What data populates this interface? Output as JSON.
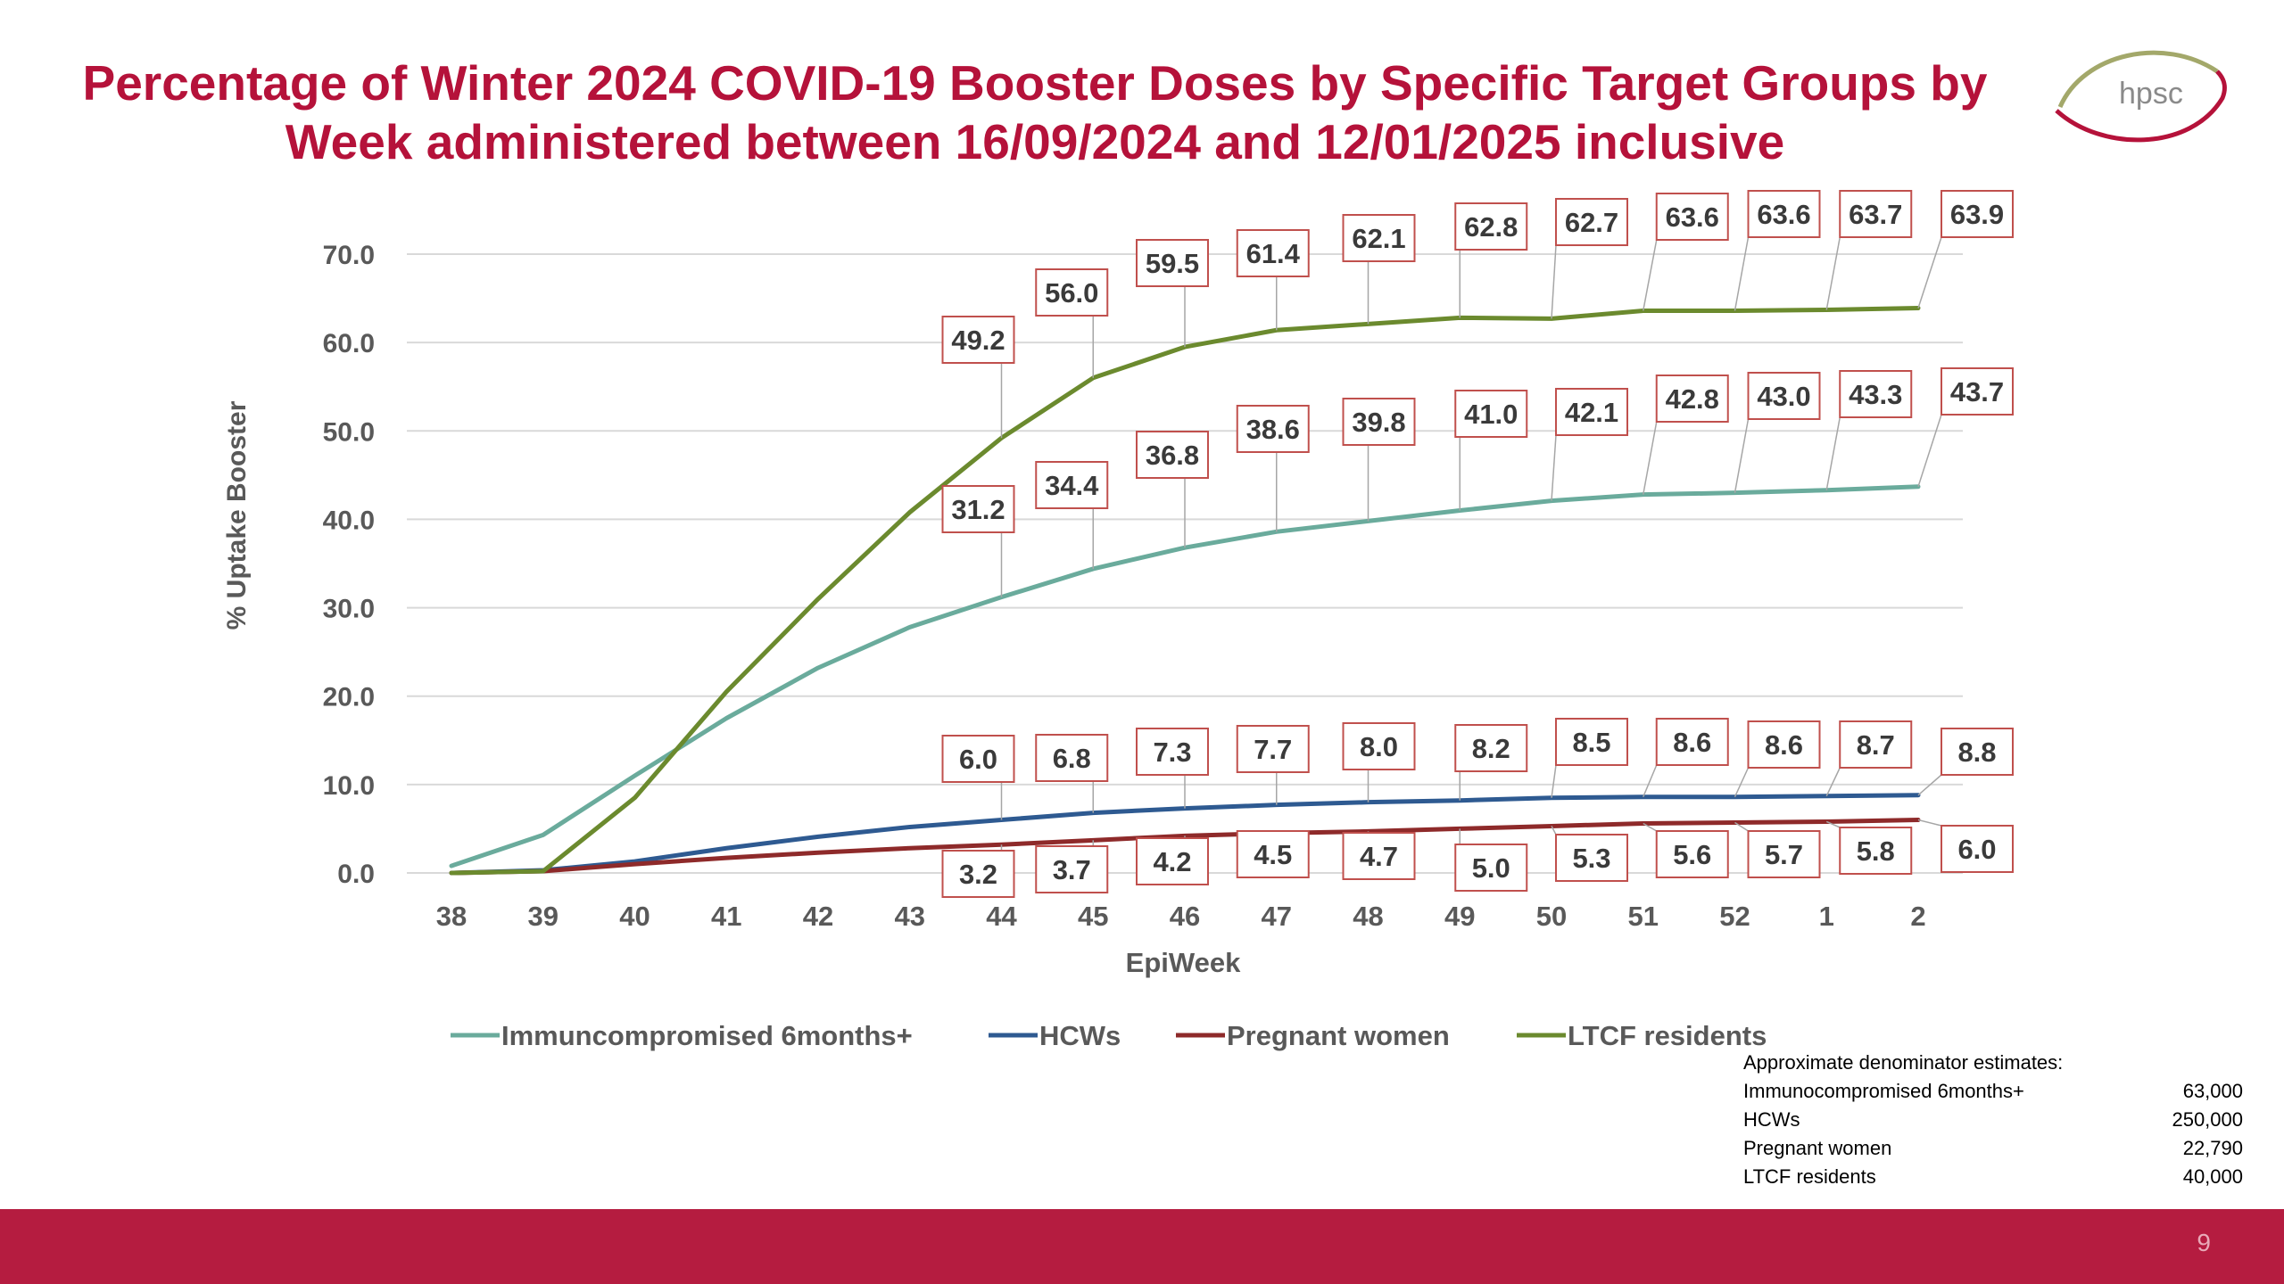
{
  "slide": {
    "title_line1": "Percentage of Winter 2024 COVID-19 Booster Doses by Specific Target Groups by",
    "title_line2": "Week administered between 16/09/2024 and 12/01/2025 inclusive",
    "logo_text": "hpsc",
    "page_number": "9"
  },
  "denominator": {
    "heading": "Approximate denominator estimates:",
    "rows": [
      {
        "label": "Immunocompromised 6months+",
        "value": "63,000"
      },
      {
        "label": "HCWs",
        "value": "250,000"
      },
      {
        "label": "Pregnant women",
        "value": "22,790"
      },
      {
        "label": "LTCF residents",
        "value": "40,000"
      }
    ]
  },
  "colors": {
    "brand": "#b5123a",
    "footer": "#b51c40",
    "label_border": "#c0504d"
  },
  "chart_data": {
    "type": "line",
    "title": "",
    "xlabel": "EpiWeek",
    "ylabel": "% Uptake Booster",
    "ylim": [
      0,
      70
    ],
    "yticks": [
      "0.0",
      "10.0",
      "20.0",
      "30.0",
      "40.0",
      "50.0",
      "60.0",
      "70.0"
    ],
    "grid": true,
    "legend_position": "bottom",
    "categories": [
      "38",
      "39",
      "40",
      "41",
      "42",
      "43",
      "44",
      "45",
      "46",
      "47",
      "48",
      "49",
      "50",
      "51",
      "52",
      "1",
      "2"
    ],
    "series": [
      {
        "name": "Immuncompromised 6months+",
        "color": "#6aab9c",
        "values": [
          0.8,
          4.3,
          11.0,
          17.5,
          23.2,
          27.8,
          31.2,
          34.4,
          36.8,
          38.6,
          39.8,
          41.0,
          42.1,
          42.8,
          43.0,
          43.3,
          43.7
        ],
        "labels": [
          null,
          null,
          null,
          null,
          null,
          null,
          "31.2",
          "34.4",
          "36.8",
          "38.6",
          "39.8",
          "41.0",
          "42.1",
          "42.8",
          "43.0",
          "43.3",
          "43.7"
        ]
      },
      {
        "name": "HCWs",
        "color": "#2e5a91",
        "values": [
          0.0,
          0.3,
          1.3,
          2.8,
          4.1,
          5.2,
          6.0,
          6.8,
          7.3,
          7.7,
          8.0,
          8.2,
          8.5,
          8.6,
          8.6,
          8.7,
          8.8
        ],
        "labels": [
          null,
          null,
          null,
          null,
          null,
          null,
          "6.0",
          "6.8",
          "7.3",
          "7.7",
          "8.0",
          "8.2",
          "8.5",
          "8.6",
          "8.6",
          "8.7",
          "8.8"
        ]
      },
      {
        "name": "Pregnant women",
        "color": "#8e2a2a",
        "values": [
          0.0,
          0.2,
          1.0,
          1.7,
          2.3,
          2.8,
          3.2,
          3.7,
          4.2,
          4.5,
          4.7,
          5.0,
          5.3,
          5.6,
          5.7,
          5.8,
          6.0
        ],
        "labels": [
          null,
          null,
          null,
          null,
          null,
          null,
          "3.2",
          "3.7",
          "4.2",
          "4.5",
          "4.7",
          "5.0",
          "5.3",
          "5.6",
          "5.7",
          "5.8",
          "6.0"
        ]
      },
      {
        "name": "LTCF residents",
        "color": "#6b8a2e",
        "values": [
          0.0,
          0.2,
          8.5,
          20.5,
          31.0,
          40.8,
          49.2,
          56.0,
          59.5,
          61.4,
          62.1,
          62.8,
          62.7,
          63.6,
          63.6,
          63.7,
          63.9
        ],
        "labels": [
          null,
          null,
          null,
          null,
          null,
          null,
          "49.2",
          "56.0",
          "59.5",
          "61.4",
          "62.1",
          "62.8",
          "62.7",
          "63.6",
          "63.6",
          "63.7",
          "63.9"
        ]
      }
    ]
  }
}
